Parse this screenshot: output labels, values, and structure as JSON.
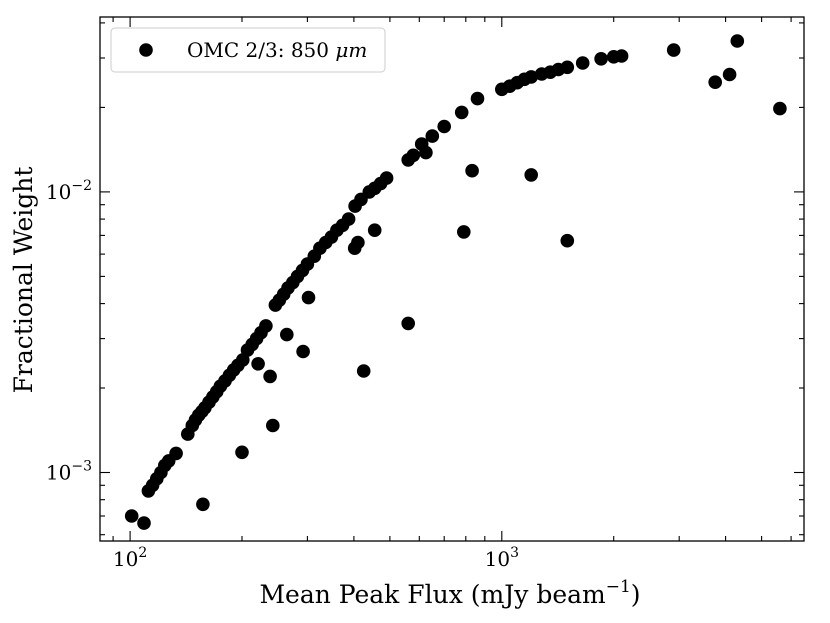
{
  "chart_data": {
    "type": "scatter",
    "xscale": "log",
    "yscale": "log",
    "xlim": [
      83,
      6500
    ],
    "ylim": [
      0.00057,
      0.042
    ],
    "xlabel": "Mean Peak Flux (mJy beam",
    "xlabel_sup": "−1",
    "xlabel_end": ")",
    "ylabel": "Fractional Weight",
    "grid": false,
    "legend_position": "top-left",
    "x_ticks": [
      {
        "value": 100,
        "base": "10",
        "exp": "2"
      },
      {
        "value": 1000,
        "base": "10",
        "exp": "3"
      }
    ],
    "y_ticks": [
      {
        "value": 0.001,
        "base": "10",
        "exp": "−3"
      },
      {
        "value": 0.01,
        "base": "10",
        "exp": "−2"
      }
    ],
    "series": [
      {
        "name": "OMC 2/3: 850 μm",
        "legend_text": "OMC 2/3: 850",
        "legend_unit": "μm",
        "color": "#000000",
        "points": [
          [
            101,
            0.0007
          ],
          [
            109,
            0.00066
          ],
          [
            112,
            0.00086
          ],
          [
            115,
            0.0009
          ],
          [
            118,
            0.00095
          ],
          [
            121,
            0.001
          ],
          [
            124,
            0.00106
          ],
          [
            127,
            0.0011
          ],
          [
            133,
            0.00117
          ],
          [
            143,
            0.00137
          ],
          [
            147,
            0.00147
          ],
          [
            150,
            0.00154
          ],
          [
            153,
            0.0016
          ],
          [
            156,
            0.00165
          ],
          [
            159,
            0.0017
          ],
          [
            163,
            0.00178
          ],
          [
            167,
            0.00186
          ],
          [
            171,
            0.00194
          ],
          [
            175,
            0.00203
          ],
          [
            180,
            0.00212
          ],
          [
            185,
            0.00222
          ],
          [
            190,
            0.00232
          ],
          [
            195,
            0.00241
          ],
          [
            201,
            0.00252
          ],
          [
            207,
            0.00273
          ],
          [
            213,
            0.00286
          ],
          [
            219,
            0.003
          ],
          [
            225,
            0.00315
          ],
          [
            232,
            0.00333
          ],
          [
            246,
            0.00395
          ],
          [
            252,
            0.00411
          ],
          [
            259,
            0.00432
          ],
          [
            266,
            0.00455
          ],
          [
            274,
            0.00475
          ],
          [
            282,
            0.005
          ],
          [
            291,
            0.00525
          ],
          [
            300,
            0.00553
          ],
          [
            313,
            0.0059
          ],
          [
            324,
            0.0063
          ],
          [
            336,
            0.0066
          ],
          [
            348,
            0.0069
          ],
          [
            360,
            0.0073
          ],
          [
            373,
            0.0076
          ],
          [
            387,
            0.008
          ],
          [
            403,
            0.0089
          ],
          [
            418,
            0.0094
          ],
          [
            440,
            0.01
          ],
          [
            455,
            0.0103
          ],
          [
            472,
            0.0107
          ],
          [
            490,
            0.0112
          ],
          [
            560,
            0.013
          ],
          [
            578,
            0.0135
          ],
          [
            609,
            0.0148
          ],
          [
            650,
            0.0158
          ],
          [
            700,
            0.0171
          ],
          [
            780,
            0.0192
          ],
          [
            860,
            0.0215
          ],
          [
            1000,
            0.0232
          ],
          [
            1050,
            0.0238
          ],
          [
            1100,
            0.0245
          ],
          [
            1150,
            0.0252
          ],
          [
            1200,
            0.0257
          ],
          [
            1280,
            0.0263
          ],
          [
            1350,
            0.0267
          ],
          [
            1420,
            0.0273
          ],
          [
            1500,
            0.0278
          ],
          [
            1650,
            0.0288
          ],
          [
            1850,
            0.0298
          ],
          [
            2000,
            0.0303
          ],
          [
            2100,
            0.0305
          ],
          [
            2900,
            0.032
          ],
          [
            4300,
            0.0345
          ],
          [
            4100,
            0.0262
          ],
          [
            3750,
            0.0246
          ],
          [
            5600,
            0.0198
          ],
          [
            157,
            0.00077
          ],
          [
            200,
            0.00118
          ],
          [
            238,
            0.0022
          ],
          [
            242,
            0.00147
          ],
          [
            221,
            0.00244
          ],
          [
            264,
            0.0031
          ],
          [
            292,
            0.0027
          ],
          [
            302,
            0.0042
          ],
          [
            410,
            0.0066
          ],
          [
            402,
            0.0063
          ],
          [
            425,
            0.0023
          ],
          [
            455,
            0.0073
          ],
          [
            560,
            0.0034
          ],
          [
            625,
            0.0138
          ],
          [
            790,
            0.0072
          ],
          [
            832,
            0.0119
          ],
          [
            1200,
            0.0115
          ],
          [
            1500,
            0.0067
          ]
        ]
      }
    ]
  }
}
